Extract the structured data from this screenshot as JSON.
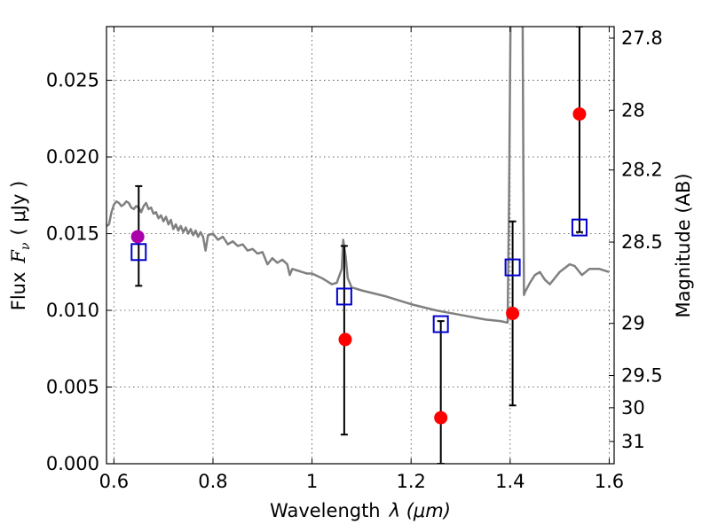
{
  "chart_data": {
    "type": "scatter",
    "xlabel_text": "Wavelength",
    "xlabel_math": "λ (μm)",
    "ylabel_text": "Flux",
    "ylabel_math": "F",
    "ylabel_sub": "ν",
    "ylabel_units": "( μJy )",
    "ylabel_right": "Magnitude (AB)",
    "xlim": [
      0.585,
      1.61
    ],
    "ylim": [
      0.0,
      0.0285
    ],
    "grid": true,
    "x_ticks": [
      0.6,
      0.8,
      1.0,
      1.2,
      1.4,
      1.6
    ],
    "x_tick_labels": [
      "0.6",
      "0.8",
      "1",
      "1.2",
      "1.4",
      "1.6"
    ],
    "y_ticks": [
      0.0,
      0.005,
      0.01,
      0.015,
      0.02,
      0.025
    ],
    "y_tick_labels": [
      "0.000",
      "0.005",
      "0.010",
      "0.015",
      "0.020",
      "0.025"
    ],
    "right_ticks": [
      {
        "label": "27.8",
        "flux": 0.02775
      },
      {
        "label": "28",
        "flux": 0.02305
      },
      {
        "label": "28.2",
        "flux": 0.01915
      },
      {
        "label": "28.5",
        "flux": 0.01445
      },
      {
        "label": "29",
        "flux": 0.00915
      },
      {
        "label": "29.5",
        "flux": 0.00575
      },
      {
        "label": "30",
        "flux": 0.00365
      },
      {
        "label": "31",
        "flux": 0.00145
      }
    ],
    "model_spectrum": {
      "color": "#808080",
      "x": [
        0.585,
        0.59,
        0.595,
        0.6,
        0.605,
        0.61,
        0.615,
        0.62,
        0.625,
        0.63,
        0.635,
        0.64,
        0.645,
        0.65,
        0.655,
        0.66,
        0.665,
        0.67,
        0.675,
        0.68,
        0.685,
        0.69,
        0.695,
        0.7,
        0.705,
        0.71,
        0.715,
        0.72,
        0.725,
        0.73,
        0.735,
        0.74,
        0.745,
        0.75,
        0.755,
        0.76,
        0.765,
        0.77,
        0.775,
        0.78,
        0.785,
        0.79,
        0.8,
        0.81,
        0.82,
        0.83,
        0.84,
        0.85,
        0.86,
        0.87,
        0.88,
        0.89,
        0.9,
        0.91,
        0.92,
        0.93,
        0.94,
        0.95,
        0.955,
        0.96,
        0.97,
        0.98,
        0.99,
        1.0,
        1.02,
        1.04,
        1.05,
        1.06,
        1.063,
        1.068,
        1.072,
        1.08,
        1.1,
        1.15,
        1.2,
        1.25,
        1.3,
        1.35,
        1.38,
        1.395,
        1.398,
        1.401,
        1.404,
        1.425,
        1.428,
        1.43,
        1.44,
        1.45,
        1.46,
        1.47,
        1.48,
        1.5,
        1.52,
        1.53,
        1.545,
        1.56,
        1.58,
        1.6
      ],
      "y": [
        0.0155,
        0.0156,
        0.0164,
        0.0169,
        0.0171,
        0.017,
        0.0168,
        0.0169,
        0.0171,
        0.017,
        0.0167,
        0.0166,
        0.0168,
        0.0167,
        0.0164,
        0.0168,
        0.017,
        0.0166,
        0.0167,
        0.0163,
        0.0164,
        0.016,
        0.0162,
        0.0158,
        0.0161,
        0.0156,
        0.0159,
        0.0153,
        0.0156,
        0.0152,
        0.0155,
        0.0151,
        0.0154,
        0.015,
        0.0153,
        0.0149,
        0.0152,
        0.0148,
        0.0151,
        0.0148,
        0.0139,
        0.0149,
        0.015,
        0.0146,
        0.0148,
        0.0143,
        0.0145,
        0.0142,
        0.0143,
        0.0139,
        0.014,
        0.0137,
        0.0138,
        0.013,
        0.0134,
        0.0131,
        0.0133,
        0.013,
        0.0123,
        0.0127,
        0.0126,
        0.0125,
        0.0124,
        0.0124,
        0.0121,
        0.0117,
        0.0118,
        0.0127,
        0.0146,
        0.0135,
        0.0121,
        0.0115,
        0.0113,
        0.0109,
        0.0104,
        0.01,
        0.0097,
        0.0094,
        0.0093,
        0.0092,
        0.018,
        0.03,
        0.03,
        0.03,
        0.011,
        0.0112,
        0.0118,
        0.0123,
        0.0125,
        0.012,
        0.0117,
        0.0125,
        0.013,
        0.0129,
        0.0123,
        0.0127,
        0.0127,
        0.0125
      ]
    },
    "series": [
      {
        "marker": "square-open",
        "color": "#0000cc",
        "points": [
          {
            "x": 0.65,
            "y": 0.0138,
            "err_low": 0.0116,
            "err_high": 0.0181
          },
          {
            "x": 1.065,
            "y": 0.0109,
            "err_low": 0.0019,
            "err_high": 0.0142
          },
          {
            "x": 1.26,
            "y": 0.0091,
            "err_low": 0.0,
            "err_high": 0.0093
          },
          {
            "x": 1.405,
            "y": 0.0128,
            "err_low": 0.0038,
            "err_high": 0.0158
          },
          {
            "x": 1.54,
            "y": 0.0154,
            "err_low": 0.0151,
            "err_high": 0.0285
          }
        ]
      },
      {
        "marker": "circle",
        "color": "#ff0000",
        "points": [
          {
            "x": 0.648,
            "y": 0.0148,
            "color": "#aa00aa"
          },
          {
            "x": 1.067,
            "y": 0.0081
          },
          {
            "x": 1.26,
            "y": 0.003
          },
          {
            "x": 1.405,
            "y": 0.0098
          },
          {
            "x": 1.54,
            "y": 0.0228
          }
        ]
      }
    ]
  }
}
